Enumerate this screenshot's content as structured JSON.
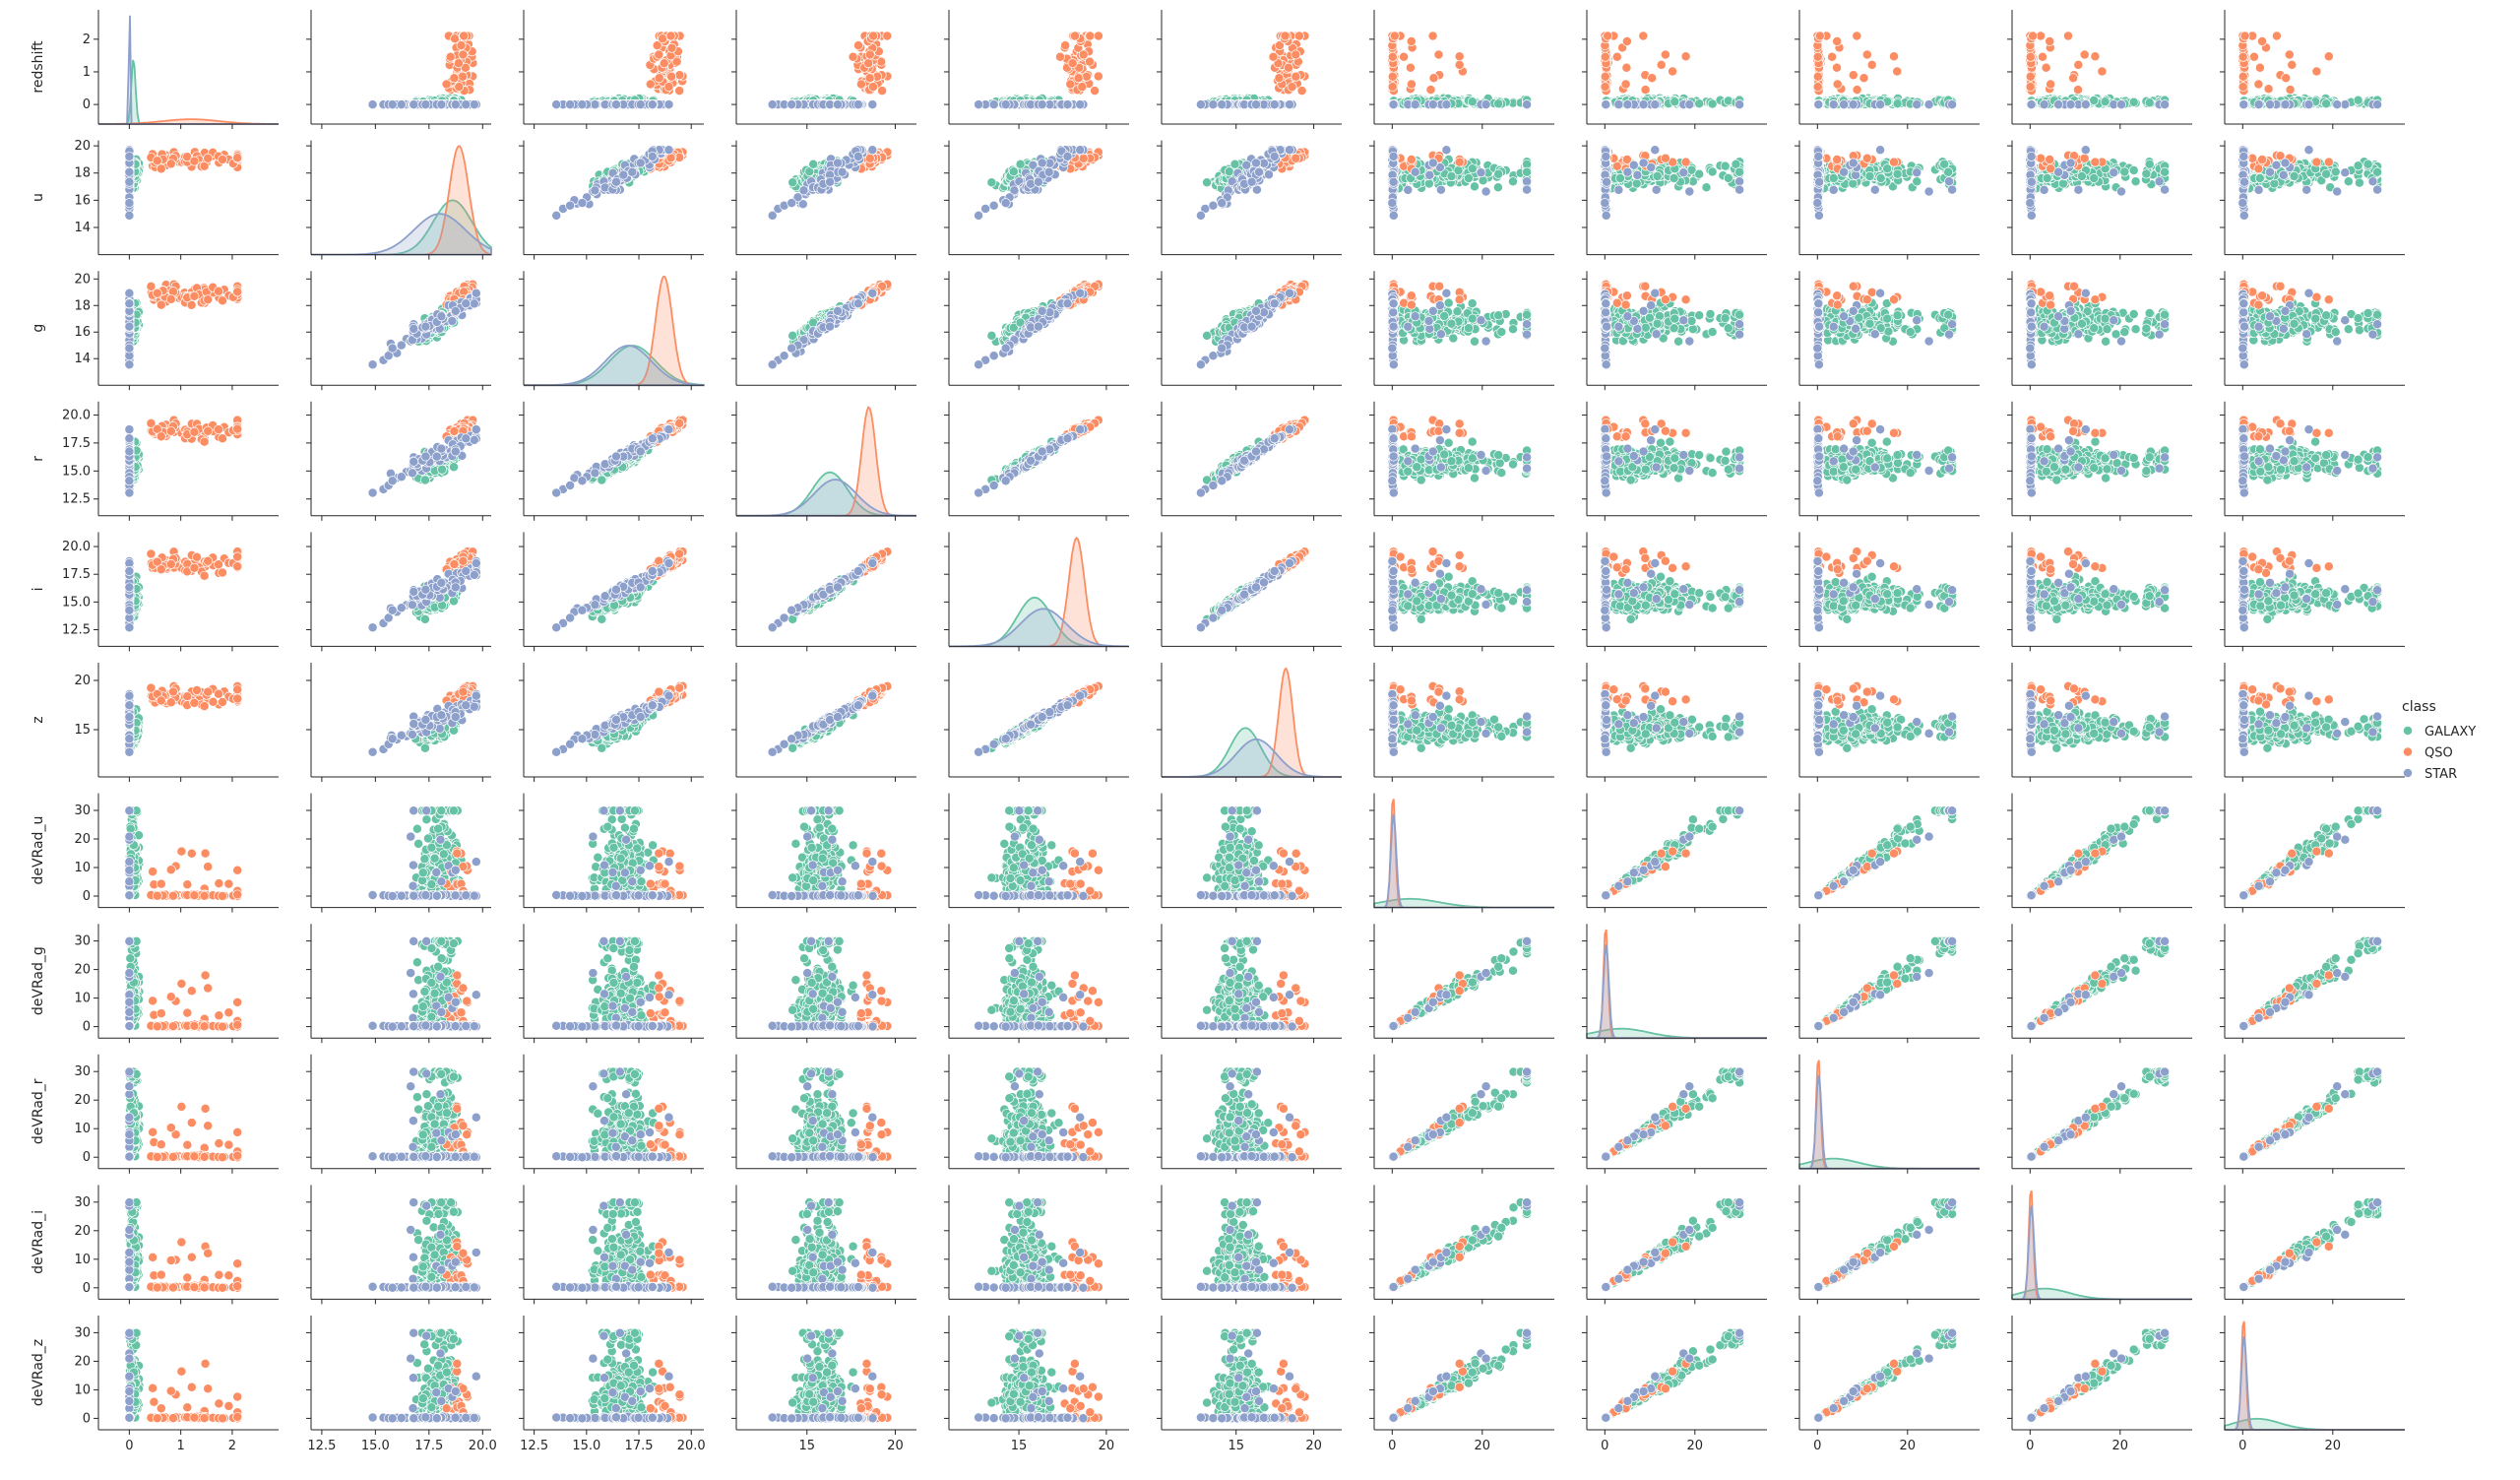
{
  "chart_data": {
    "type": "scatter",
    "title": "",
    "variables": [
      "redshift",
      "u",
      "g",
      "r",
      "i",
      "z",
      "deVRad_u",
      "deVRad_g",
      "deVRad_r",
      "deVRad_i",
      "deVRad_z"
    ],
    "column_ranges": {
      "redshift": [
        -0.6,
        2.9
      ],
      "u": [
        12.0,
        20.4
      ],
      "g": [
        12.0,
        20.6
      ],
      "r": [
        11.0,
        21.2
      ],
      "i": [
        11.0,
        21.3
      ],
      "z": [
        10.2,
        21.8
      ],
      "deVRad_u": [
        -4,
        36
      ],
      "deVRad_g": [
        -4,
        36
      ],
      "deVRad_r": [
        -4,
        36
      ],
      "deVRad_i": [
        -4,
        36
      ],
      "deVRad_z": [
        -4,
        36
      ]
    },
    "row_ticks": {
      "redshift": [
        "0",
        "1",
        "2"
      ],
      "u": [
        "14",
        "16",
        "18",
        "20"
      ],
      "g": [
        "14",
        "16",
        "18",
        "20"
      ],
      "r": [
        "12.5",
        "15.0",
        "17.5",
        "20.0"
      ],
      "i": [
        "12.5",
        "15.0",
        "17.5",
        "20.0"
      ],
      "z": [
        "15",
        "20"
      ],
      "deVRad_u": [
        "0",
        "10",
        "20",
        "30"
      ],
      "deVRad_g": [
        "0",
        "10",
        "20",
        "30"
      ],
      "deVRad_r": [
        "0",
        "10",
        "20",
        "30"
      ],
      "deVRad_i": [
        "0",
        "10",
        "20",
        "30"
      ],
      "deVRad_z": [
        "0",
        "10",
        "20",
        "30"
      ]
    },
    "column_ticks": {
      "redshift": [
        "0",
        "1",
        "2"
      ],
      "u": [
        "12.5",
        "15.0",
        "17.5",
        "20.0"
      ],
      "g": [
        "12.5",
        "15.0",
        "17.5",
        "20.0"
      ],
      "r": [
        "15",
        "20"
      ],
      "i": [
        "15",
        "20"
      ],
      "z": [
        "15",
        "20"
      ],
      "deVRad_u": [
        "0",
        "20"
      ],
      "deVRad_g": [
        "0",
        "20"
      ],
      "deVRad_r": [
        "0",
        "20"
      ],
      "deVRad_i": [
        "0",
        "20"
      ],
      "deVRad_z": [
        "0",
        "20"
      ]
    },
    "bottom_labels_visible": [
      "",
      "",
      "",
      "",
      "",
      "",
      "",
      "",
      "",
      "",
      ""
    ],
    "diagonal": "kde",
    "grid": false,
    "legend": {
      "title": "class",
      "placement": "right",
      "entries": [
        {
          "name": "GALAXY",
          "color": "#66c2a5"
        },
        {
          "name": "QSO",
          "color": "#fc8d62"
        },
        {
          "name": "STAR",
          "color": "#8da0cb"
        }
      ]
    },
    "series": [
      {
        "name": "GALAXY",
        "color": "#66c2a5",
        "means": [
          0.08,
          18.6,
          17.2,
          16.3,
          15.9,
          15.6,
          4.0,
          3.7,
          3.5,
          3.3,
          3.2
        ],
        "sds": [
          0.04,
          0.9,
          1.1,
          1.0,
          1.0,
          1.0,
          6.5,
          6.0,
          5.6,
          5.3,
          5.1
        ]
      },
      {
        "name": "QSO",
        "color": "#fc8d62",
        "means": [
          1.2,
          18.9,
          18.7,
          18.5,
          18.3,
          18.2,
          0.2,
          0.2,
          0.2,
          0.2,
          0.2
        ],
        "sds": [
          0.55,
          0.45,
          0.4,
          0.4,
          0.45,
          0.45,
          0.5,
          0.5,
          0.5,
          0.5,
          0.5
        ]
      },
      {
        "name": "STAR",
        "color": "#8da0cb",
        "means": [
          0.0,
          18.0,
          17.0,
          16.6,
          16.4,
          16.3,
          0.3,
          0.3,
          0.3,
          0.3,
          0.3
        ],
        "sds": [
          0.0004,
          1.2,
          1.1,
          1.2,
          1.3,
          1.3,
          0.6,
          0.6,
          0.6,
          0.6,
          0.6
        ]
      }
    ]
  }
}
